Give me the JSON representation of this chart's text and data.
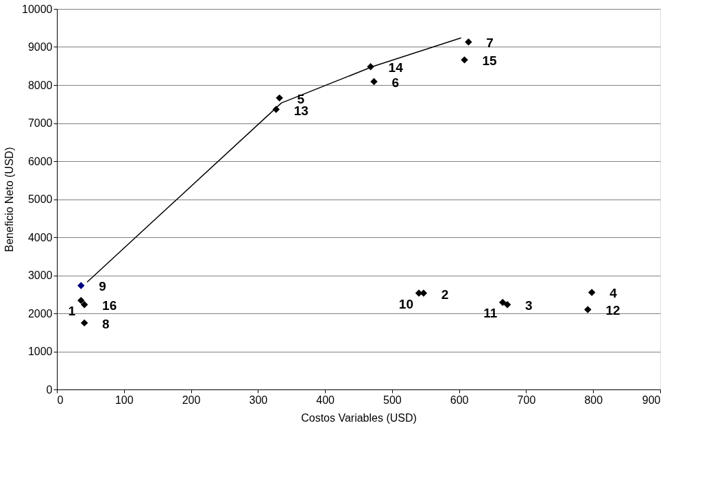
{
  "chart_data": {
    "type": "scatter",
    "xlabel": "Costos Variables (USD)",
    "ylabel": "Beneficio Neto (USD)",
    "xlim": [
      0,
      900
    ],
    "xticks": [
      0,
      100,
      200,
      300,
      400,
      500,
      600,
      700,
      800,
      900
    ],
    "ylim": [
      0,
      10000
    ],
    "yticks": [
      0,
      1000,
      2000,
      3000,
      4000,
      5000,
      6000,
      7000,
      8000,
      9000,
      10000
    ],
    "grid": "y",
    "marker": "diamond",
    "series": [
      {
        "x": [
          36,
          547,
          672,
          798,
          332,
          473,
          614,
          41,
          36,
          540,
          665,
          792,
          327,
          468,
          608,
          41
        ],
        "values": [
          2340,
          2530,
          2230,
          2550,
          7660,
          8090,
          9130,
          1750,
          2730,
          2530,
          2290,
          2100,
          7360,
          8480,
          8660,
          2230
        ],
        "colors": [
          "#000000",
          "#000000",
          "#000000",
          "#000000",
          "#000000",
          "#000000",
          "#000000",
          "#000000",
          "#000080",
          "#000000",
          "#000000",
          "#000000",
          "#000000",
          "#000000",
          "#000000",
          "#000000"
        ]
      },
      {
        "type": "line",
        "x": [
          45,
          335,
          472,
          603
        ],
        "values": [
          2820,
          7530,
          8490,
          9240
        ],
        "color": "#000000",
        "marker": "none"
      }
    ],
    "annotations": [
      {
        "text": "1",
        "x": 36,
        "y": 2340
      },
      {
        "text": "2",
        "x": 547,
        "y": 2530
      },
      {
        "text": "3",
        "x": 672,
        "y": 2230
      },
      {
        "text": "4",
        "x": 798,
        "y": 2550
      },
      {
        "text": "5",
        "x": 332,
        "y": 7660
      },
      {
        "text": "6",
        "x": 473,
        "y": 8090
      },
      {
        "text": "7",
        "x": 614,
        "y": 9130
      },
      {
        "text": "8",
        "x": 41,
        "y": 1750
      },
      {
        "text": "9",
        "x": 36,
        "y": 2730
      },
      {
        "text": "10",
        "x": 540,
        "y": 2530
      },
      {
        "text": "11",
        "x": 665,
        "y": 2290
      },
      {
        "text": "12",
        "x": 792,
        "y": 2100
      },
      {
        "text": "13",
        "x": 327,
        "y": 7360
      },
      {
        "text": "14",
        "x": 468,
        "y": 8480
      },
      {
        "text": "15",
        "x": 608,
        "y": 8660
      },
      {
        "text": "16",
        "x": 41,
        "y": 2230
      }
    ]
  }
}
